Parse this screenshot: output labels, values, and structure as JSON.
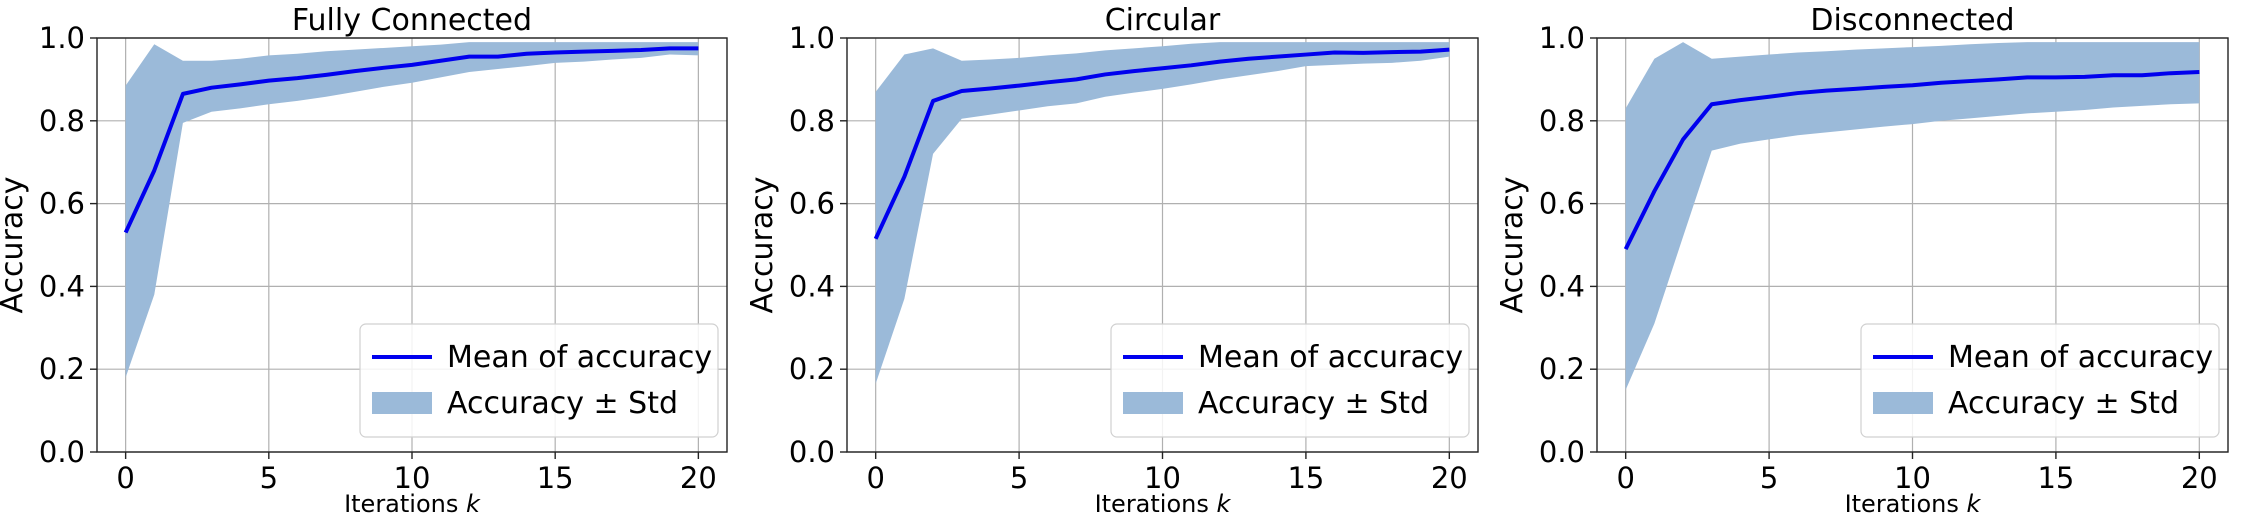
{
  "chart_data": [
    {
      "type": "line",
      "title": "Fully Connected",
      "xlabel": "Iterations",
      "xlabel_var": "k",
      "ylabel": "Accuracy",
      "xlim": [
        -1,
        21
      ],
      "ylim": [
        0.0,
        1.0
      ],
      "xticks": [
        0,
        5,
        10,
        15,
        20
      ],
      "yticks": [
        0.0,
        0.2,
        0.4,
        0.6,
        0.8,
        1.0
      ],
      "xtick_labels": [
        "0",
        "5",
        "10",
        "15",
        "20"
      ],
      "ytick_labels": [
        "0.0",
        "0.2",
        "0.4",
        "0.6",
        "0.8",
        "1.0"
      ],
      "grid": true,
      "legend_position": "lower-right",
      "x": [
        0,
        1,
        2,
        3,
        4,
        5,
        6,
        7,
        8,
        9,
        10,
        11,
        12,
        13,
        14,
        15,
        16,
        17,
        18,
        19,
        20
      ],
      "series": [
        {
          "name": "Mean of accuracy",
          "kind": "line",
          "color": "#0000ee",
          "values": [
            0.53,
            0.68,
            0.865,
            0.88,
            0.888,
            0.897,
            0.903,
            0.911,
            0.92,
            0.928,
            0.935,
            0.945,
            0.955,
            0.955,
            0.962,
            0.965,
            0.967,
            0.969,
            0.971,
            0.975,
            0.975
          ]
        },
        {
          "name": "Accuracy ± Std",
          "kind": "band",
          "color": "#9bbad9",
          "upper": [
            0.885,
            0.985,
            0.945,
            0.945,
            0.95,
            0.958,
            0.962,
            0.968,
            0.972,
            0.976,
            0.98,
            0.984,
            0.99,
            0.99,
            0.99,
            0.99,
            0.99,
            0.99,
            0.99,
            0.99,
            0.99
          ],
          "lower": [
            0.18,
            0.38,
            0.795,
            0.822,
            0.83,
            0.84,
            0.848,
            0.858,
            0.87,
            0.882,
            0.892,
            0.905,
            0.918,
            0.925,
            0.932,
            0.94,
            0.943,
            0.948,
            0.952,
            0.96,
            0.958
          ]
        }
      ]
    },
    {
      "type": "line",
      "title": "Circular",
      "xlabel": "Iterations",
      "xlabel_var": "k",
      "ylabel": "Accuracy",
      "xlim": [
        -1,
        21
      ],
      "ylim": [
        0.0,
        1.0
      ],
      "xticks": [
        0,
        5,
        10,
        15,
        20
      ],
      "yticks": [
        0.0,
        0.2,
        0.4,
        0.6,
        0.8,
        1.0
      ],
      "xtick_labels": [
        "0",
        "5",
        "10",
        "15",
        "20"
      ],
      "ytick_labels": [
        "0.0",
        "0.2",
        "0.4",
        "0.6",
        "0.8",
        "1.0"
      ],
      "grid": true,
      "legend_position": "lower-right",
      "x": [
        0,
        1,
        2,
        3,
        4,
        5,
        6,
        7,
        8,
        9,
        10,
        11,
        12,
        13,
        14,
        15,
        16,
        17,
        18,
        19,
        20
      ],
      "series": [
        {
          "name": "Mean of accuracy",
          "kind": "line",
          "color": "#0000ee",
          "values": [
            0.515,
            0.665,
            0.848,
            0.872,
            0.878,
            0.885,
            0.893,
            0.9,
            0.912,
            0.92,
            0.927,
            0.934,
            0.943,
            0.95,
            0.955,
            0.96,
            0.965,
            0.964,
            0.966,
            0.967,
            0.972
          ]
        },
        {
          "name": "Accuracy ± Std",
          "kind": "band",
          "color": "#9bbad9",
          "upper": [
            0.87,
            0.96,
            0.975,
            0.945,
            0.948,
            0.952,
            0.958,
            0.963,
            0.97,
            0.975,
            0.98,
            0.986,
            0.99,
            0.99,
            0.99,
            0.99,
            0.99,
            0.99,
            0.99,
            0.99,
            0.99
          ],
          "lower": [
            0.165,
            0.37,
            0.72,
            0.805,
            0.815,
            0.825,
            0.835,
            0.842,
            0.858,
            0.868,
            0.877,
            0.888,
            0.9,
            0.91,
            0.92,
            0.932,
            0.935,
            0.938,
            0.94,
            0.945,
            0.955
          ]
        }
      ]
    },
    {
      "type": "line",
      "title": "Disconnected",
      "xlabel": "Iterations",
      "xlabel_var": "k",
      "ylabel": "Accuracy",
      "xlim": [
        -1,
        21
      ],
      "ylim": [
        0.0,
        1.0
      ],
      "xticks": [
        0,
        5,
        10,
        15,
        20
      ],
      "yticks": [
        0.0,
        0.2,
        0.4,
        0.6,
        0.8,
        1.0
      ],
      "xtick_labels": [
        "0",
        "5",
        "10",
        "15",
        "20"
      ],
      "ytick_labels": [
        "0.0",
        "0.2",
        "0.4",
        "0.6",
        "0.8",
        "1.0"
      ],
      "grid": true,
      "legend_position": "lower-right",
      "x": [
        0,
        1,
        2,
        3,
        4,
        5,
        6,
        7,
        8,
        9,
        10,
        11,
        12,
        13,
        14,
        15,
        16,
        17,
        18,
        19,
        20
      ],
      "series": [
        {
          "name": "Mean of accuracy",
          "kind": "line",
          "color": "#0000ee",
          "values": [
            0.49,
            0.63,
            0.755,
            0.84,
            0.85,
            0.858,
            0.867,
            0.873,
            0.877,
            0.882,
            0.886,
            0.892,
            0.896,
            0.9,
            0.905,
            0.905,
            0.906,
            0.91,
            0.91,
            0.915,
            0.918
          ]
        },
        {
          "name": "Accuracy ± Std",
          "kind": "band",
          "color": "#9bbad9",
          "upper": [
            0.83,
            0.95,
            0.99,
            0.95,
            0.955,
            0.96,
            0.965,
            0.968,
            0.972,
            0.975,
            0.978,
            0.981,
            0.985,
            0.988,
            0.99,
            0.99,
            0.99,
            0.99,
            0.99,
            0.99,
            0.99
          ],
          "lower": [
            0.15,
            0.31,
            0.52,
            0.728,
            0.745,
            0.755,
            0.765,
            0.772,
            0.779,
            0.786,
            0.792,
            0.8,
            0.806,
            0.812,
            0.818,
            0.822,
            0.826,
            0.832,
            0.836,
            0.84,
            0.842
          ]
        }
      ]
    }
  ]
}
